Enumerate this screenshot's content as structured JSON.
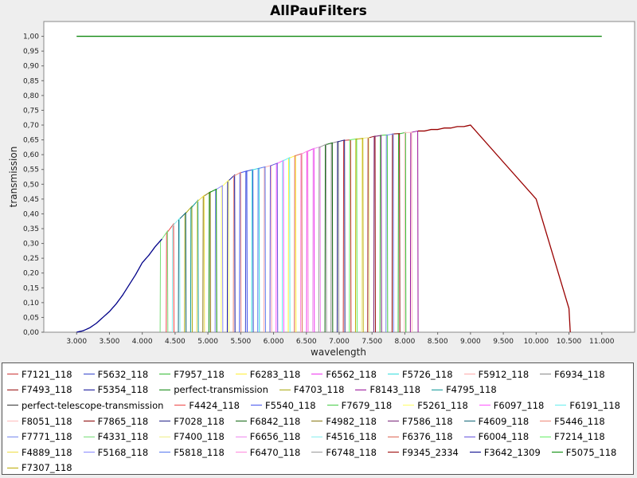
{
  "chart_data": {
    "type": "line",
    "title": "AllPauFilters",
    "xlabel": "wavelength",
    "ylabel": "transmission",
    "xlim": [
      2500,
      11500
    ],
    "ylim": [
      0,
      1.05
    ],
    "xticks": [
      3000,
      3500,
      4000,
      4500,
      5000,
      5500,
      6000,
      6500,
      7000,
      7500,
      8000,
      8500,
      9000,
      9500,
      10000,
      10500,
      11000
    ],
    "xtick_labels": [
      "3.000",
      "3.500",
      "4.000",
      "4.500",
      "5.000",
      "5.500",
      "6.000",
      "6.500",
      "7.000",
      "7.500",
      "8.000",
      "8.500",
      "9.000",
      "9.500",
      "10.000",
      "10.500",
      "11.000"
    ],
    "yticks": [
      0,
      0.05,
      0.1,
      0.15,
      0.2,
      0.25,
      0.3,
      0.35,
      0.4,
      0.45,
      0.5,
      0.55,
      0.6,
      0.65,
      0.7,
      0.75,
      0.8,
      0.85,
      0.9,
      0.95,
      1.0
    ],
    "ytick_labels": [
      "0,00",
      "0,05",
      "0,10",
      "0,15",
      "0,20",
      "0,25",
      "0,30",
      "0,35",
      "0,40",
      "0,45",
      "0,50",
      "0,55",
      "0,60",
      "0,65",
      "0,70",
      "0,75",
      "0,80",
      "0,85",
      "0,90",
      "0,95",
      "1,00"
    ],
    "grid": false,
    "legend_position": "bottom",
    "envelope": {
      "x": [
        3000,
        3100,
        3200,
        3300,
        3400,
        3500,
        3600,
        3700,
        3800,
        3900,
        4000,
        4100,
        4200,
        4300,
        4400,
        4500,
        4600,
        4700,
        4800,
        4900,
        5000,
        5100,
        5200,
        5300,
        5400,
        5500,
        5600,
        5700,
        5800,
        5900,
        6000,
        6100,
        6200,
        6300,
        6400,
        6500,
        6600,
        6700,
        6800,
        6900,
        7000,
        7100,
        7200,
        7300,
        7400,
        7500,
        7600,
        7700,
        7800,
        7900,
        8000,
        8100,
        8200,
        8300,
        8400,
        8500,
        8600,
        8700,
        8800,
        8900,
        9000
      ],
      "y": [
        0.0,
        0.005,
        0.015,
        0.03,
        0.05,
        0.07,
        0.095,
        0.125,
        0.16,
        0.195,
        0.235,
        0.26,
        0.29,
        0.315,
        0.345,
        0.37,
        0.39,
        0.41,
        0.435,
        0.455,
        0.47,
        0.48,
        0.49,
        0.51,
        0.53,
        0.54,
        0.545,
        0.55,
        0.555,
        0.56,
        0.565,
        0.575,
        0.585,
        0.595,
        0.6,
        0.61,
        0.62,
        0.625,
        0.635,
        0.64,
        0.645,
        0.65,
        0.65,
        0.655,
        0.655,
        0.66,
        0.665,
        0.665,
        0.67,
        0.67,
        0.675,
        0.675,
        0.68,
        0.68,
        0.685,
        0.685,
        0.69,
        0.69,
        0.695,
        0.695,
        0.7
      ]
    },
    "series": [
      {
        "name": "F7121_118",
        "color": "#cc3333"
      },
      {
        "name": "F5632_118",
        "color": "#3344cc"
      },
      {
        "name": "F7957_118",
        "color": "#33bb33"
      },
      {
        "name": "F6283_118",
        "color": "#ffee33"
      },
      {
        "name": "F6562_118",
        "color": "#ee33ee"
      },
      {
        "name": "F5726_118",
        "color": "#33dddd"
      },
      {
        "name": "F5912_118",
        "color": "#ffaaaa"
      },
      {
        "name": "F6934_118",
        "color": "#888888"
      },
      {
        "name": "F7493_118",
        "color": "#991111"
      },
      {
        "name": "F5354_118",
        "color": "#111199"
      },
      {
        "name": "perfect-transmission",
        "color": "#118811"
      },
      {
        "name": "F4703_118",
        "color": "#aaaa11"
      },
      {
        "name": "F8143_118",
        "color": "#991199"
      },
      {
        "name": "F4795_118",
        "color": "#119999"
      },
      {
        "name": "perfect-telescope-transmission",
        "color": "#333333"
      },
      {
        "name": "F4424_118",
        "color": "#ee4444"
      },
      {
        "name": "F5540_118",
        "color": "#4455ee"
      },
      {
        "name": "F7679_118",
        "color": "#44cc44"
      },
      {
        "name": "F5261_118",
        "color": "#ffff66"
      },
      {
        "name": "F6097_118",
        "color": "#ff55ff"
      },
      {
        "name": "F6191_118",
        "color": "#66eeee"
      },
      {
        "name": "F8051_118",
        "color": "#ffbbbb"
      },
      {
        "name": "F7865_118",
        "color": "#880000"
      },
      {
        "name": "F7028_118",
        "color": "#222288"
      },
      {
        "name": "F6842_118",
        "color": "#116611"
      },
      {
        "name": "F4982_118",
        "color": "#887711"
      },
      {
        "name": "F7586_118",
        "color": "#772277"
      },
      {
        "name": "F4609_118",
        "color": "#116677"
      },
      {
        "name": "F5446_118",
        "color": "#ee8877"
      },
      {
        "name": "F7771_118",
        "color": "#7788ee"
      },
      {
        "name": "F4331_118",
        "color": "#77dd77"
      },
      {
        "name": "F7400_118",
        "color": "#eeee88"
      },
      {
        "name": "F6656_118",
        "color": "#ee88ee"
      },
      {
        "name": "F4516_118",
        "color": "#88eeee"
      },
      {
        "name": "F6376_118",
        "color": "#dd6655"
      },
      {
        "name": "F6004_118",
        "color": "#6655dd"
      },
      {
        "name": "F7214_118",
        "color": "#66ee66"
      },
      {
        "name": "F4889_118",
        "color": "#eedd44"
      },
      {
        "name": "F5168_118",
        "color": "#8888ff"
      },
      {
        "name": "F5818_118",
        "color": "#5577ee"
      },
      {
        "name": "F6470_118",
        "color": "#ff88dd"
      },
      {
        "name": "F6748_118",
        "color": "#999999"
      },
      {
        "name": "F9345_2334",
        "color": "#990000"
      },
      {
        "name": "F3642_1309",
        "color": "#000088"
      },
      {
        "name": "F5075_118",
        "color": "#008800"
      },
      {
        "name": "F7307_118",
        "color": "#bbaa00"
      }
    ],
    "wide_filters": {
      "F9345_2334": {
        "x": [
          8200,
          9000,
          10000,
          10500,
          10520
        ],
        "y": [
          0.68,
          0.7,
          0.45,
          0.08,
          0.0
        ]
      },
      "F3642_1309": {
        "x": [
          3000,
          4300
        ],
        "y": [
          0.0,
          0.315
        ]
      },
      "perfect-transmission": {
        "x": [
          3000,
          11000
        ],
        "y": [
          1.0,
          1.0
        ]
      }
    }
  }
}
